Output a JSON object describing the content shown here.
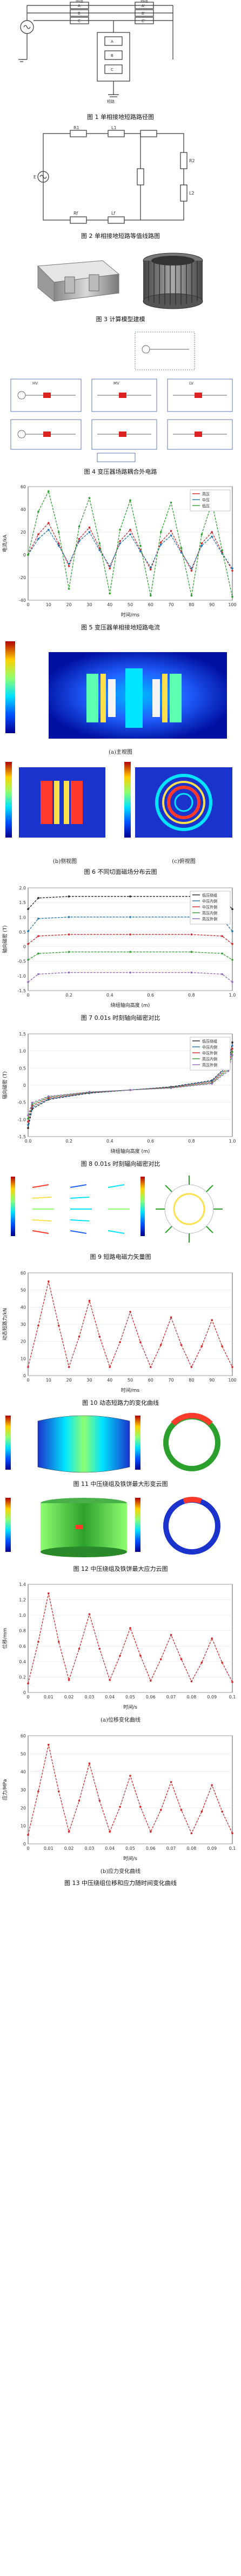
{
  "captions": {
    "fig1": "图 1  单相接地短路路径图",
    "fig2": "图 2  单相接地短路等值线路图",
    "fig3": "图 3  计算模型建模",
    "fig4": "图 4  变压器场路耦合外电路",
    "fig5": "图 5  变压器单相接地短路电流",
    "fig6": "图 6  不同切面磁场分布云图",
    "fig6a": "(a)主视图",
    "fig6b": "(b)侧视图",
    "fig6c": "(c)俯视图",
    "fig7": "图 7  0.01s 时刻轴向磁密对比",
    "fig8": "图 8  0.01s 时刻辐向磁密对比",
    "fig9": "图 9  短路电磁力矢量图",
    "fig10": "图 10  动态短路力的变化曲线",
    "fig11": "图 11  中压绕组及铁饼最大形变云图",
    "fig12": "图 12  中压绕组及铁饼最大应力云图",
    "fig13a": "(a)位移变化曲线",
    "fig13b": "(b)应力变化曲线",
    "fig13": "图 13  中压绕组位移和应力随时间变化曲线"
  },
  "fig1_labels": {
    "gen": "发电机",
    "neutral": "中性点",
    "hv": "高压",
    "lv": "低压",
    "windings_left": [
      "A",
      "B",
      "C"
    ],
    "windings_right": [
      "A'",
      "B'",
      "C'"
    ],
    "fault": "短路",
    "stack": [
      "A",
      "B",
      "C"
    ]
  },
  "fig2_labels": {
    "source": "E",
    "elements": [
      "R1",
      "L1",
      "R2",
      "L2",
      "Rf",
      "Lf"
    ]
  },
  "fig4_labels": {
    "blocks": [
      "HV",
      "MV",
      "LV"
    ]
  },
  "chart5": {
    "type": "line",
    "ylabel": "电流/kA",
    "xlabel": "时间/ms",
    "legend": [
      "高压",
      "中压",
      "低压"
    ],
    "colors": [
      "#d62728",
      "#1f77b4",
      "#2ca02c"
    ],
    "xticks": [
      "0",
      "10",
      "20",
      "30",
      "40",
      "50",
      "60",
      "70",
      "80",
      "90",
      "100"
    ],
    "yticks": [
      "-40",
      "-20",
      "0",
      "20",
      "40",
      "60"
    ],
    "ylim": [
      -40,
      60
    ],
    "xlim": [
      0,
      100
    ]
  },
  "chart7": {
    "type": "line",
    "ylabel": "轴向磁密 (T)",
    "xlabel": "绕组轴向高度 (m)",
    "legend": [
      "低压绕组",
      "中压内侧",
      "中压外侧",
      "高压内侧",
      "高压外侧"
    ],
    "colors": [
      "#222222",
      "#1f77b4",
      "#d62728",
      "#2ca02c",
      "#9467bd"
    ],
    "xticks": [
      "0",
      "0.2",
      "0.4",
      "0.6",
      "0.8",
      "1.0"
    ],
    "yticks": [
      "-1.5",
      "-1.0",
      "-0.5",
      "0",
      "0.5",
      "1.0",
      "1.5",
      "2.0"
    ]
  },
  "chart8": {
    "type": "line",
    "ylabel": "辐向磁密 (T)",
    "xlabel": "绕组轴向高度 (m)",
    "legend": [
      "低压绕组",
      "中压内侧",
      "中压外侧",
      "高压内侧",
      "高压外侧"
    ],
    "colors": [
      "#222222",
      "#1f77b4",
      "#d62728",
      "#2ca02c",
      "#9467bd"
    ],
    "xticks": [
      "0.0",
      "0.2",
      "0.4",
      "0.6",
      "0.8",
      "1.0"
    ],
    "yticks": [
      "-1.5",
      "-1.0",
      "-0.5",
      "0",
      "0.5",
      "1.0",
      "1.5"
    ]
  },
  "chart10": {
    "type": "line",
    "ylabel": "动态短路力/kN",
    "xlabel": "时间/ms",
    "xticks": [
      "0",
      "10",
      "20",
      "30",
      "40",
      "50",
      "60",
      "70",
      "80",
      "90",
      "100"
    ],
    "yticks": [
      "0",
      "10",
      "20",
      "30",
      "40",
      "50",
      "60"
    ],
    "color": "#d62728"
  },
  "chart13a": {
    "type": "line",
    "ylabel": "位移/mm",
    "xlabel": "时间/s",
    "xticks": [
      "0",
      "0.01",
      "0.02",
      "0.03",
      "0.04",
      "0.05",
      "0.06",
      "0.07",
      "0.08",
      "0.09",
      "0.1"
    ],
    "yticks": [
      "0",
      "0.2",
      "0.4",
      "0.6",
      "0.8",
      "1.0",
      "1.2",
      "1.4"
    ],
    "color": "#d62728"
  },
  "chart13b": {
    "type": "line",
    "ylabel": "应力/MPa",
    "xlabel": "时间/s",
    "xticks": [
      "0",
      "0.01",
      "0.02",
      "0.03",
      "0.04",
      "0.05",
      "0.06",
      "0.07",
      "0.08",
      "0.09",
      "0.1"
    ],
    "yticks": [
      "0",
      "10",
      "20",
      "30",
      "40",
      "50",
      "60"
    ],
    "color": "#d62728"
  },
  "chart_data": [
    {
      "type": "line",
      "title": "图 5  变压器单相接地短路电流",
      "xlabel": "时间/ms",
      "ylabel": "电流/kA",
      "xlim": [
        0,
        100
      ],
      "ylim": [
        -40,
        60
      ],
      "series": [
        {
          "name": "高压",
          "x": [
            0,
            5,
            10,
            15,
            20,
            25,
            30,
            35,
            40,
            45,
            50,
            55,
            60,
            65,
            70,
            75,
            80,
            85,
            90,
            95,
            100
          ],
          "values": [
            0,
            18,
            28,
            10,
            -10,
            14,
            24,
            6,
            -12,
            12,
            22,
            4,
            -13,
            11,
            21,
            3,
            -14,
            10,
            20,
            2,
            -14
          ]
        },
        {
          "name": "中压",
          "x": [
            0,
            5,
            10,
            15,
            20,
            25,
            30,
            35,
            40,
            45,
            50,
            55,
            60,
            65,
            70,
            75,
            80,
            85,
            90,
            95,
            100
          ],
          "values": [
            0,
            14,
            22,
            8,
            -8,
            12,
            20,
            4,
            -10,
            10,
            18,
            3,
            -11,
            9,
            17,
            2,
            -12,
            8,
            16,
            1,
            -12
          ]
        },
        {
          "name": "低压",
          "x": [
            0,
            5,
            10,
            15,
            20,
            25,
            30,
            35,
            40,
            45,
            50,
            55,
            60,
            65,
            70,
            75,
            80,
            85,
            90,
            95,
            100
          ],
          "values": [
            0,
            38,
            56,
            20,
            -30,
            25,
            50,
            10,
            -34,
            22,
            48,
            8,
            -36,
            20,
            46,
            6,
            -36,
            18,
            46,
            4,
            -37
          ]
        }
      ]
    },
    {
      "type": "line",
      "title": "图 7  0.01s 时刻轴向磁密对比",
      "xlabel": "绕组轴向高度 (m)",
      "ylabel": "轴向磁密 (T)",
      "series": [
        {
          "name": "低压绕组",
          "values": [
            1.6,
            1.95,
            2.0,
            2.0,
            2.0,
            1.95,
            1.6
          ]
        },
        {
          "name": "中压内侧",
          "values": [
            0.9,
            1.3,
            1.35,
            1.35,
            1.35,
            1.3,
            0.9
          ]
        },
        {
          "name": "中压外侧",
          "values": [
            0.5,
            0.75,
            0.8,
            0.8,
            0.8,
            0.75,
            0.5
          ]
        },
        {
          "name": "高压内侧",
          "values": [
            0.0,
            0.2,
            0.25,
            0.25,
            0.25,
            0.2,
            0.0
          ]
        },
        {
          "name": "高压外侧",
          "values": [
            -0.7,
            -0.45,
            -0.4,
            -0.4,
            -0.4,
            -0.45,
            -0.7
          ]
        }
      ],
      "x": [
        0,
        0.05,
        0.2,
        0.5,
        0.8,
        0.95,
        1.0
      ]
    },
    {
      "type": "line",
      "title": "图 8  0.01s 时刻辐向磁密对比",
      "xlabel": "绕组轴向高度 (m)",
      "ylabel": "辐向磁密 (T)",
      "x": [
        0,
        0.02,
        0.1,
        0.3,
        0.5,
        0.7,
        0.9,
        0.98,
        1.0
      ],
      "series": [
        {
          "name": "低压绕组",
          "values": [
            -1.2,
            -0.6,
            -0.3,
            -0.1,
            0,
            0.1,
            0.3,
            0.8,
            1.5
          ]
        },
        {
          "name": "中压内侧",
          "values": [
            -1.1,
            -0.55,
            -0.28,
            -0.09,
            0,
            0.09,
            0.28,
            0.75,
            1.4
          ]
        },
        {
          "name": "中压外侧",
          "values": [
            -1.0,
            -0.5,
            -0.25,
            -0.08,
            0,
            0.08,
            0.25,
            0.7,
            1.3
          ]
        },
        {
          "name": "高压内侧",
          "values": [
            -0.9,
            -0.45,
            -0.22,
            -0.07,
            0,
            0.07,
            0.22,
            0.65,
            1.2
          ]
        },
        {
          "name": "高压外侧",
          "values": [
            -0.8,
            -0.4,
            -0.2,
            -0.06,
            0,
            0.06,
            0.2,
            0.6,
            1.1
          ]
        }
      ]
    },
    {
      "type": "line",
      "title": "图 10  动态短路力的变化曲线",
      "xlabel": "时间/ms",
      "ylabel": "动态短路力/kN",
      "x": [
        0,
        5,
        10,
        15,
        20,
        25,
        30,
        35,
        40,
        45,
        50,
        55,
        60,
        65,
        70,
        75,
        80,
        85,
        90,
        95,
        100
      ],
      "series": [
        {
          "values": [
            0,
            30,
            62,
            30,
            0,
            22,
            48,
            22,
            0,
            18,
            40,
            18,
            0,
            16,
            36,
            16,
            0,
            15,
            34,
            15,
            0
          ]
        }
      ]
    },
    {
      "type": "line",
      "title": "(a)位移变化曲线",
      "xlabel": "时间/s",
      "ylabel": "位移/mm",
      "x": [
        0,
        0.005,
        0.01,
        0.015,
        0.02,
        0.025,
        0.03,
        0.035,
        0.04,
        0.045,
        0.05,
        0.055,
        0.06,
        0.065,
        0.07,
        0.075,
        0.08,
        0.085,
        0.09,
        0.095,
        0.1
      ],
      "series": [
        {
          "values": [
            0,
            0.6,
            1.3,
            0.6,
            0.05,
            0.5,
            1.0,
            0.5,
            0.05,
            0.4,
            0.8,
            0.4,
            0.04,
            0.35,
            0.7,
            0.35,
            0.03,
            0.3,
            0.65,
            0.3,
            0.02
          ]
        }
      ]
    },
    {
      "type": "line",
      "title": "(b)应力变化曲线",
      "xlabel": "时间/s",
      "ylabel": "应力/MPa",
      "x": [
        0,
        0.005,
        0.01,
        0.015,
        0.02,
        0.025,
        0.03,
        0.035,
        0.04,
        0.045,
        0.05,
        0.055,
        0.06,
        0.065,
        0.07,
        0.075,
        0.08,
        0.085,
        0.09,
        0.095,
        0.1
      ],
      "series": [
        {
          "values": [
            0,
            28,
            58,
            28,
            2,
            22,
            46,
            22,
            2,
            18,
            38,
            18,
            2,
            16,
            34,
            16,
            1,
            15,
            32,
            15,
            1
          ]
        }
      ]
    }
  ]
}
